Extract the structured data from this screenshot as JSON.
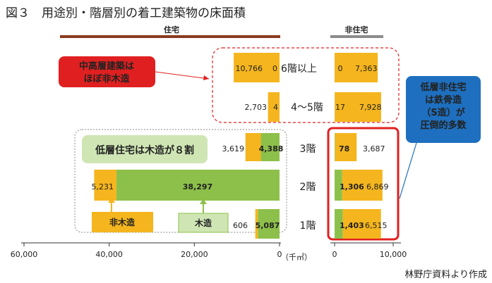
{
  "title": "図３　用途別・階層別の着工建築物の床面積",
  "source": "林野庁資料より作成",
  "unit": "（千㎡）",
  "colors": {
    "wood": "#8dc04a",
    "non_wood": "#f5b51e",
    "title_bar": "#8b3a1e",
    "gray_bar": "#8c8c8c",
    "red": "#e02020",
    "blue": "#1e6fbf"
  },
  "annotations": {
    "mid_high": "中高層建築は\nほぼ非木造",
    "low_wood": "低層住宅は木造が８割",
    "low_nonres": "低層非住宅\nは鉄骨造\n（S造）が\n圧倒的多数",
    "non_wood_label": "非木造",
    "wood_label": "木造"
  },
  "chart_data": {
    "type": "bar",
    "orientation": "horizontal",
    "panels": [
      "住宅",
      "非住宅"
    ],
    "categories": [
      "6階以上",
      "4～5階",
      "3階",
      "2階",
      "1階"
    ],
    "series": [
      {
        "name": "非木造",
        "residential": [
          10766,
          2703,
          3619,
          5231,
          606
        ],
        "non_residential": [
          7363,
          7928,
          3687,
          6869,
          6515
        ]
      },
      {
        "name": "木造",
        "residential": [
          0,
          4,
          4388,
          38297,
          5087
        ],
        "non_residential": [
          0,
          17,
          78,
          1306,
          1403
        ]
      }
    ],
    "residential_axis": {
      "ticks": [
        60000,
        40000,
        20000,
        0
      ],
      "tick_labels": [
        "60,000",
        "40,000",
        "20,000",
        "0"
      ],
      "range": [
        60000,
        0
      ]
    },
    "non_residential_axis": {
      "ticks": [
        0,
        10000
      ],
      "tick_labels": [
        "0",
        "10,000"
      ],
      "range": [
        0,
        12000
      ]
    }
  }
}
